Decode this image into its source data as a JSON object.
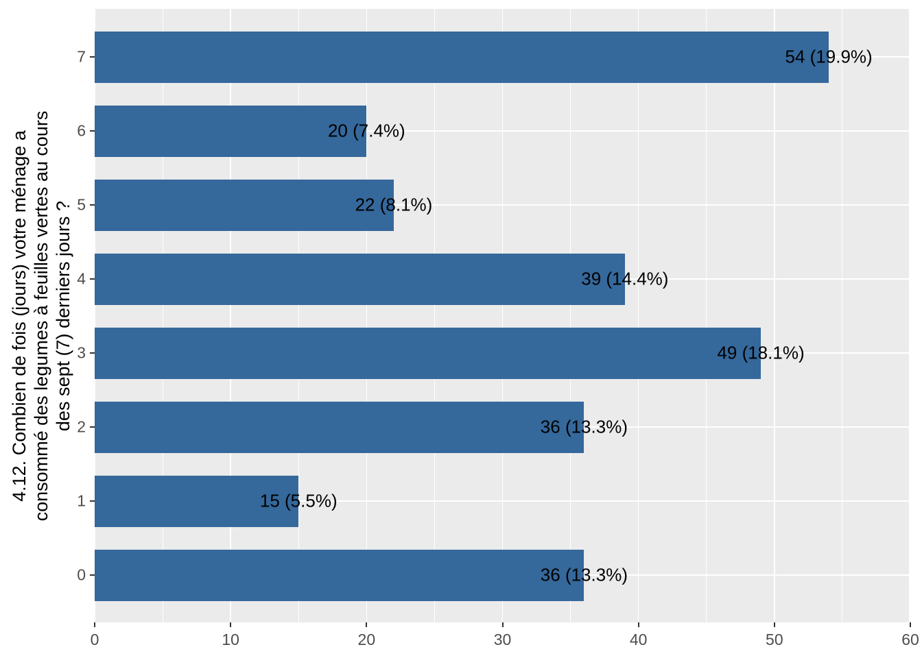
{
  "chart_data": {
    "type": "bar",
    "orientation": "horizontal",
    "title": "",
    "xlabel": "",
    "ylabel": "4.12. Combien de fois (jours) votre ménage a consommé des legumes à feuilles vertes au cours des sept (7) derniers jours ?",
    "ylabel_lines": [
      "4.12. Combien de fois (jours) votre ménage a",
      "consommé des legumes à feuilles vertes au cours",
      "des sept (7) derniers jours ?"
    ],
    "categories": [
      "7",
      "6",
      "5",
      "4",
      "3",
      "2",
      "1",
      "0"
    ],
    "values": [
      54,
      20,
      22,
      39,
      49,
      36,
      15,
      36
    ],
    "bar_labels": [
      "54 (19.9%)",
      "20 (7.4%)",
      "22 (8.1%)",
      "39 (14.4%)",
      "49 (18.1%)",
      "36 (13.3%)",
      "15 (5.5%)",
      "36 (13.3%)"
    ],
    "x_ticks": [
      "0",
      "10",
      "20",
      "30",
      "40",
      "50",
      "60"
    ],
    "x_tick_values": [
      0,
      10,
      20,
      30,
      40,
      50,
      60
    ],
    "xlim": [
      0,
      60
    ],
    "grid": true,
    "legend": "none",
    "colors": {
      "bar_fill": "#35689B",
      "panel_background": "#EBEBEB",
      "gridline": "#FFFFFF",
      "axis_text": "#4D4D4D",
      "axis_title": "#000000",
      "tick_mark": "#333333",
      "figure_background": "#FFFFFF"
    }
  }
}
